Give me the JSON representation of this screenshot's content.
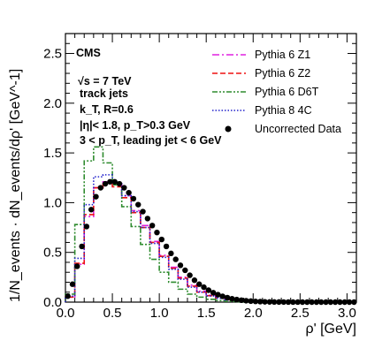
{
  "chart_data": {
    "type": "line",
    "title": "",
    "xlabel": "ρ' [GeV]",
    "ylabel": "1/N_events · dN_events/dρ' [GeV^-1]",
    "xlim": [
      0,
      3.1
    ],
    "ylim": [
      0,
      2.7
    ],
    "x_ticks": [
      "0.0",
      "0.5",
      "1.0",
      "1.5",
      "2.0",
      "2.5",
      "3.0"
    ],
    "y_ticks": [
      "0.0",
      "0.5",
      "1.0",
      "1.5",
      "2.0",
      "2.5"
    ],
    "grid": false,
    "legend_position": "top-right",
    "annotations": {
      "experiment": "CMS",
      "energy": "√s = 7 TeV",
      "jets": "track jets",
      "algorithm": "k_T, R=0.6",
      "eta_cut": "|η|< 1.8, p_T>0.3 GeV",
      "pt_range": "3 < p_T, leading jet < 6 GeV"
    },
    "series": [
      {
        "name": "Pythia 6 Z1",
        "color": "#e020e0",
        "style": "dash-dot",
        "x": [
          0.05,
          0.15,
          0.25,
          0.35,
          0.45,
          0.55,
          0.65,
          0.75,
          0.85,
          0.95,
          1.05,
          1.15,
          1.25,
          1.35,
          1.45,
          1.55,
          1.65,
          1.75,
          1.85,
          1.95,
          2.05,
          2.15,
          2.25
        ],
        "values": [
          0.05,
          0.38,
          0.86,
          1.15,
          1.21,
          1.18,
          1.07,
          0.92,
          0.77,
          0.61,
          0.47,
          0.35,
          0.25,
          0.17,
          0.11,
          0.07,
          0.044,
          0.026,
          0.015,
          0.008,
          0.004,
          0.002,
          0.001
        ]
      },
      {
        "name": "Pythia 6 Z2",
        "color": "#ee1111",
        "style": "dashed",
        "x": [
          0.05,
          0.15,
          0.25,
          0.35,
          0.45,
          0.55,
          0.65,
          0.75,
          0.85,
          0.95,
          1.05,
          1.15,
          1.25,
          1.35,
          1.45,
          1.55,
          1.65,
          1.75,
          1.85,
          1.95,
          2.05,
          2.15,
          2.25
        ],
        "values": [
          0.05,
          0.39,
          0.88,
          1.15,
          1.2,
          1.16,
          1.05,
          0.9,
          0.75,
          0.6,
          0.46,
          0.34,
          0.24,
          0.16,
          0.1,
          0.065,
          0.04,
          0.024,
          0.013,
          0.007,
          0.004,
          0.002,
          0.001
        ]
      },
      {
        "name": "Pythia 6 D6T",
        "color": "#2e8b2e",
        "style": "dash-dot-dot",
        "x": [
          0.05,
          0.15,
          0.25,
          0.35,
          0.45,
          0.55,
          0.65,
          0.75,
          0.85,
          0.95,
          1.05,
          1.15,
          1.25,
          1.35,
          1.45,
          1.55,
          1.65,
          1.75,
          1.85,
          1.95,
          2.05
        ],
        "values": [
          0.08,
          0.78,
          1.42,
          1.56,
          1.4,
          1.18,
          0.96,
          0.76,
          0.58,
          0.43,
          0.3,
          0.2,
          0.13,
          0.08,
          0.05,
          0.028,
          0.015,
          0.008,
          0.004,
          0.002,
          0.001
        ]
      },
      {
        "name": "Pythia 8 4C",
        "color": "#2222cc",
        "style": "dotted",
        "x": [
          0.05,
          0.15,
          0.25,
          0.35,
          0.45,
          0.55,
          0.65,
          0.75,
          0.85,
          0.95,
          1.05,
          1.15,
          1.25,
          1.35,
          1.45,
          1.55,
          1.65,
          1.75,
          1.85,
          1.95,
          2.05,
          2.15
        ],
        "values": [
          0.06,
          0.44,
          0.98,
          1.26,
          1.28,
          1.2,
          1.07,
          0.91,
          0.75,
          0.59,
          0.45,
          0.33,
          0.23,
          0.15,
          0.1,
          0.062,
          0.038,
          0.022,
          0.012,
          0.006,
          0.003,
          0.001
        ]
      },
      {
        "name": "Uncorrected Data",
        "color": "#000000",
        "style": "markers",
        "x": [
          0.025,
          0.075,
          0.125,
          0.175,
          0.225,
          0.275,
          0.325,
          0.375,
          0.425,
          0.475,
          0.525,
          0.575,
          0.625,
          0.675,
          0.725,
          0.775,
          0.825,
          0.875,
          0.925,
          0.975,
          1.025,
          1.075,
          1.125,
          1.175,
          1.225,
          1.275,
          1.325,
          1.375,
          1.425,
          1.475,
          1.525,
          1.575,
          1.625,
          1.675,
          1.725,
          1.775,
          1.825,
          1.875,
          1.925,
          1.975,
          2.025,
          2.075,
          2.125,
          2.175,
          2.225,
          2.275,
          2.325,
          2.375,
          2.425,
          2.475,
          2.525,
          2.575,
          2.625,
          2.675,
          2.725,
          2.775,
          2.825,
          2.875,
          2.925,
          2.975,
          3.025,
          3.075
        ],
        "values": [
          0.06,
          0.18,
          0.36,
          0.56,
          0.76,
          0.93,
          1.06,
          1.15,
          1.19,
          1.21,
          1.21,
          1.19,
          1.15,
          1.1,
          1.04,
          0.98,
          0.91,
          0.84,
          0.77,
          0.7,
          0.63,
          0.56,
          0.49,
          0.43,
          0.37,
          0.32,
          0.27,
          0.22,
          0.18,
          0.15,
          0.12,
          0.095,
          0.075,
          0.058,
          0.045,
          0.034,
          0.026,
          0.019,
          0.014,
          0.01,
          0.007,
          0.005,
          0.003,
          0.002,
          0.0015,
          0.001,
          0.0007,
          0.0005,
          0.0003,
          0.0002,
          0.0001,
          0.0001,
          0.0001,
          0,
          0,
          0,
          0,
          0,
          0,
          0,
          0,
          0
        ]
      }
    ]
  }
}
